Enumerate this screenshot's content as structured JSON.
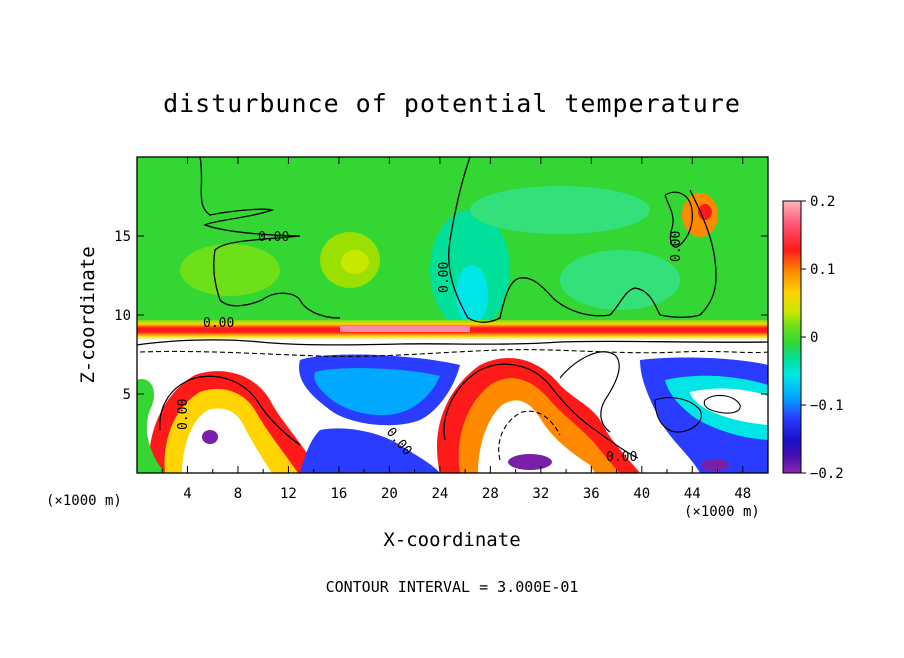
{
  "chart_data": {
    "type": "heatmap",
    "title": "disturbunce of potential temperature",
    "xlabel": "X-coordinate",
    "ylabel": "Z-coordinate",
    "x_unit": "(×1000 m)",
    "x_unit_left": "(×1000 m)",
    "xlim": [
      0,
      50
    ],
    "ylim": [
      0,
      20
    ],
    "x_ticks": [
      "4",
      "8",
      "12",
      "16",
      "20",
      "24",
      "28",
      "32",
      "36",
      "40",
      "44",
      "48"
    ],
    "y_ticks": [
      "5",
      "10",
      "15"
    ],
    "colorbar": {
      "range": [
        -0.2,
        0.2
      ],
      "tick_labels": [
        "0.2",
        "0.1",
        "0",
        "−0.1",
        "−0.2"
      ]
    },
    "contour_labels": [
      "0.00",
      "0.00",
      "0.00",
      "0.00",
      "0.00",
      "0.00",
      "0.00"
    ],
    "footer": "CONTOUR INTERVAL = 3.000E-01",
    "colors": {
      "upper_field": "#33d633",
      "stable_band_red": "#ff1a1a",
      "positive": "#ff2020",
      "negative": "#2a3cff",
      "strong_negative": "#7a1fa8"
    }
  }
}
